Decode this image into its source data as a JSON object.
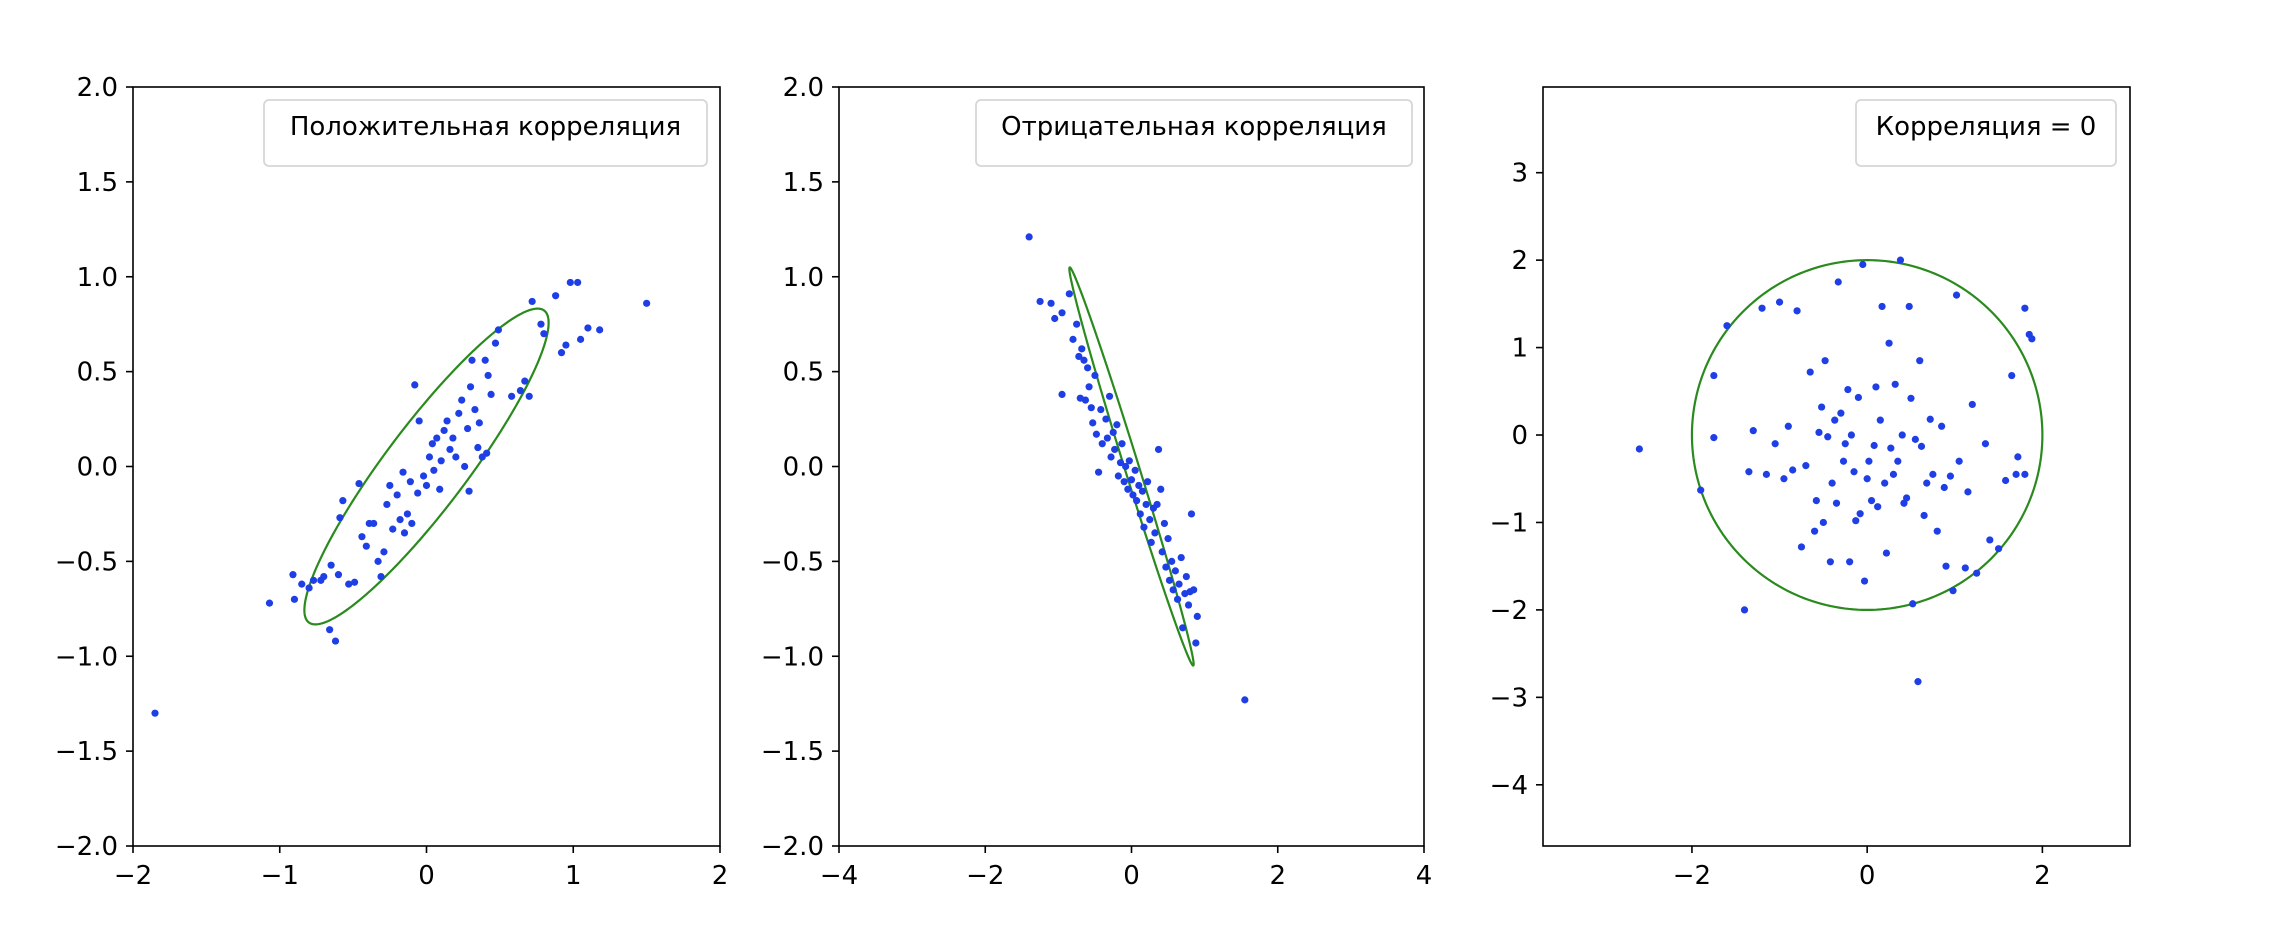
{
  "colors": {
    "points": "#1f3fe6",
    "ellipse": "#2a8a1e",
    "axes": "#000000",
    "legend_border": "#d6d6d6"
  },
  "chart_data": [
    {
      "type": "scatter",
      "title": "",
      "xlabel": "",
      "ylabel": "",
      "legend": {
        "entries": [
          "Положительная корреляция"
        ],
        "placement": "top-right"
      },
      "xlim": [
        -2,
        2
      ],
      "ylim": [
        -2,
        2
      ],
      "xticks": [
        -2,
        -1,
        0,
        1,
        2
      ],
      "xtick_labels": [
        "−2",
        "−1",
        "0",
        "1",
        "2"
      ],
      "yticks": [
        -2,
        -1.5,
        -1,
        -0.5,
        0,
        0.5,
        1,
        1.5,
        2
      ],
      "ytick_labels": [
        "−2.0",
        "−1.5",
        "−1.0",
        "−0.5",
        "0.0",
        "0.5",
        "1.0",
        "1.5",
        "2.0"
      ],
      "ellipse": {
        "center": [
          0,
          0
        ],
        "width": 2.3,
        "height": 0.5,
        "angle_deg": 45
      },
      "points": [
        [
          -1.85,
          -1.3
        ],
        [
          -1.07,
          -0.72
        ],
        [
          -0.91,
          -0.57
        ],
        [
          -0.9,
          -0.7
        ],
        [
          -0.85,
          -0.62
        ],
        [
          -0.8,
          -0.64
        ],
        [
          -0.77,
          -0.6
        ],
        [
          -0.72,
          -0.6
        ],
        [
          -0.7,
          -0.58
        ],
        [
          -0.66,
          -0.86
        ],
        [
          -0.62,
          -0.92
        ],
        [
          -0.65,
          -0.52
        ],
        [
          -0.6,
          -0.57
        ],
        [
          -0.59,
          -0.27
        ],
        [
          -0.57,
          -0.18
        ],
        [
          -0.53,
          -0.62
        ],
        [
          -0.49,
          -0.61
        ],
        [
          -0.46,
          -0.09
        ],
        [
          -0.44,
          -0.37
        ],
        [
          -0.41,
          -0.42
        ],
        [
          -0.39,
          -0.3
        ],
        [
          -0.36,
          -0.3
        ],
        [
          -0.33,
          -0.5
        ],
        [
          -0.31,
          -0.58
        ],
        [
          -0.29,
          -0.45
        ],
        [
          -0.27,
          -0.2
        ],
        [
          -0.25,
          -0.1
        ],
        [
          -0.23,
          -0.33
        ],
        [
          -0.2,
          -0.15
        ],
        [
          -0.18,
          -0.28
        ],
        [
          -0.16,
          -0.03
        ],
        [
          -0.15,
          -0.35
        ],
        [
          -0.13,
          -0.25
        ],
        [
          -0.11,
          -0.08
        ],
        [
          -0.1,
          -0.3
        ],
        [
          -0.08,
          0.43
        ],
        [
          -0.06,
          -0.14
        ],
        [
          -0.05,
          0.24
        ],
        [
          -0.02,
          -0.05
        ],
        [
          0.0,
          -0.1
        ],
        [
          0.02,
          0.05
        ],
        [
          0.04,
          0.12
        ],
        [
          0.05,
          -0.02
        ],
        [
          0.07,
          0.15
        ],
        [
          0.09,
          -0.12
        ],
        [
          0.1,
          0.03
        ],
        [
          0.12,
          0.19
        ],
        [
          0.14,
          0.24
        ],
        [
          0.16,
          0.09
        ],
        [
          0.18,
          0.15
        ],
        [
          0.2,
          0.05
        ],
        [
          0.22,
          0.28
        ],
        [
          0.24,
          0.35
        ],
        [
          0.26,
          0.0
        ],
        [
          0.28,
          0.2
        ],
        [
          0.29,
          -0.13
        ],
        [
          0.3,
          0.42
        ],
        [
          0.31,
          0.56
        ],
        [
          0.33,
          0.3
        ],
        [
          0.35,
          0.1
        ],
        [
          0.36,
          0.23
        ],
        [
          0.38,
          0.05
        ],
        [
          0.4,
          0.56
        ],
        [
          0.41,
          0.07
        ],
        [
          0.42,
          0.48
        ],
        [
          0.44,
          0.38
        ],
        [
          0.47,
          0.65
        ],
        [
          0.49,
          0.72
        ],
        [
          0.58,
          0.37
        ],
        [
          0.64,
          0.4
        ],
        [
          0.67,
          0.45
        ],
        [
          0.7,
          0.37
        ],
        [
          0.72,
          0.87
        ],
        [
          0.78,
          0.75
        ],
        [
          0.8,
          0.7
        ],
        [
          0.88,
          0.9
        ],
        [
          0.92,
          0.6
        ],
        [
          0.95,
          0.64
        ],
        [
          0.98,
          0.97
        ],
        [
          1.03,
          0.97
        ],
        [
          1.05,
          0.67
        ],
        [
          1.1,
          0.73
        ],
        [
          1.18,
          0.72
        ],
        [
          1.5,
          0.86
        ]
      ]
    },
    {
      "type": "scatter",
      "title": "",
      "xlabel": "",
      "ylabel": "",
      "legend": {
        "entries": [
          "Отрицательная корреляция"
        ],
        "placement": "top-right"
      },
      "xlim": [
        -4,
        4
      ],
      "ylim": [
        -2,
        2
      ],
      "xticks": [
        -4,
        -2,
        0,
        2,
        4
      ],
      "xtick_labels": [
        "−4",
        "−2",
        "0",
        "2",
        "4"
      ],
      "yticks": [
        -2,
        -1.5,
        -1,
        -0.5,
        0,
        0.5,
        1,
        1.5,
        2
      ],
      "ytick_labels": [
        "−2.0",
        "−1.5",
        "−1.0",
        "−0.5",
        "0.0",
        "0.5",
        "1.0",
        "1.5",
        "2.0"
      ],
      "ellipse": {
        "center": [
          0,
          0
        ],
        "rx": 0.85,
        "ry": 1.05,
        "correlation": "negative"
      },
      "points": [
        [
          -1.4,
          1.21
        ],
        [
          -1.25,
          0.87
        ],
        [
          -1.1,
          0.86
        ],
        [
          -1.05,
          0.78
        ],
        [
          -0.95,
          0.38
        ],
        [
          -0.95,
          0.81
        ],
        [
          -0.85,
          0.91
        ],
        [
          -0.8,
          0.67
        ],
        [
          -0.75,
          0.75
        ],
        [
          -0.72,
          0.58
        ],
        [
          -0.7,
          0.36
        ],
        [
          -0.68,
          0.62
        ],
        [
          -0.65,
          0.56
        ],
        [
          -0.63,
          0.35
        ],
        [
          -0.6,
          0.52
        ],
        [
          -0.58,
          0.42
        ],
        [
          -0.55,
          0.31
        ],
        [
          -0.53,
          0.23
        ],
        [
          -0.5,
          0.48
        ],
        [
          -0.48,
          0.17
        ],
        [
          -0.45,
          -0.03
        ],
        [
          -0.42,
          0.3
        ],
        [
          -0.4,
          0.12
        ],
        [
          -0.35,
          0.25
        ],
        [
          -0.33,
          0.15
        ],
        [
          -0.3,
          0.37
        ],
        [
          -0.28,
          0.05
        ],
        [
          -0.25,
          0.18
        ],
        [
          -0.23,
          0.09
        ],
        [
          -0.2,
          0.22
        ],
        [
          -0.18,
          -0.05
        ],
        [
          -0.15,
          0.02
        ],
        [
          -0.13,
          0.12
        ],
        [
          -0.1,
          -0.08
        ],
        [
          -0.08,
          0.0
        ],
        [
          -0.05,
          -0.12
        ],
        [
          -0.03,
          0.03
        ],
        [
          0.0,
          -0.07
        ],
        [
          0.02,
          -0.15
        ],
        [
          0.05,
          -0.02
        ],
        [
          0.07,
          -0.18
        ],
        [
          0.1,
          -0.1
        ],
        [
          0.12,
          -0.25
        ],
        [
          0.15,
          -0.13
        ],
        [
          0.17,
          -0.32
        ],
        [
          0.2,
          -0.2
        ],
        [
          0.22,
          -0.08
        ],
        [
          0.25,
          -0.28
        ],
        [
          0.27,
          -0.4
        ],
        [
          0.3,
          -0.22
        ],
        [
          0.32,
          -0.35
        ],
        [
          0.35,
          -0.2
        ],
        [
          0.37,
          0.09
        ],
        [
          0.4,
          -0.12
        ],
        [
          0.42,
          -0.45
        ],
        [
          0.45,
          -0.3
        ],
        [
          0.47,
          -0.53
        ],
        [
          0.5,
          -0.38
        ],
        [
          0.52,
          -0.6
        ],
        [
          0.55,
          -0.5
        ],
        [
          0.57,
          -0.65
        ],
        [
          0.6,
          -0.55
        ],
        [
          0.63,
          -0.7
        ],
        [
          0.65,
          -0.62
        ],
        [
          0.68,
          -0.48
        ],
        [
          0.7,
          -0.85
        ],
        [
          0.73,
          -0.67
        ],
        [
          0.75,
          -0.58
        ],
        [
          0.78,
          -0.73
        ],
        [
          0.8,
          -0.66
        ],
        [
          0.82,
          -0.25
        ],
        [
          0.85,
          -0.65
        ],
        [
          0.88,
          -0.93
        ],
        [
          0.9,
          -0.79
        ],
        [
          1.55,
          -1.23
        ]
      ]
    },
    {
      "type": "scatter",
      "title": "",
      "xlabel": "",
      "ylabel": "",
      "legend": {
        "entries": [
          "Корреляция = 0"
        ],
        "placement": "top-right"
      },
      "xlim": [
        -3.7,
        3.0
      ],
      "ylim": [
        -4.7,
        3.98
      ],
      "xticks": [
        -2,
        0,
        2
      ],
      "xtick_labels": [
        "−2",
        "0",
        "2"
      ],
      "yticks": [
        -4,
        -3,
        -2,
        -1,
        0,
        1,
        2,
        3
      ],
      "ytick_labels": [
        "−4",
        "−3",
        "−2",
        "−1",
        "0",
        "1",
        "2",
        "3"
      ],
      "ellipse": {
        "center": [
          0,
          0
        ],
        "rx": 2,
        "ry": 2
      },
      "points": [
        [
          -2.6,
          -0.16
        ],
        [
          -1.9,
          -0.63
        ],
        [
          -1.75,
          -0.03
        ],
        [
          -1.75,
          0.68
        ],
        [
          -1.6,
          1.25
        ],
        [
          -1.4,
          -2.0
        ],
        [
          -1.35,
          -0.42
        ],
        [
          -1.3,
          0.05
        ],
        [
          -1.2,
          1.45
        ],
        [
          -1.15,
          -0.45
        ],
        [
          -1.05,
          -0.1
        ],
        [
          -1.0,
          1.52
        ],
        [
          -0.95,
          -0.5
        ],
        [
          -0.9,
          0.1
        ],
        [
          -0.85,
          -0.4
        ],
        [
          -0.8,
          1.42
        ],
        [
          -0.75,
          -1.28
        ],
        [
          -0.7,
          -0.35
        ],
        [
          -0.65,
          0.72
        ],
        [
          -0.6,
          -1.1
        ],
        [
          -0.58,
          -0.75
        ],
        [
          -0.55,
          0.03
        ],
        [
          -0.52,
          0.32
        ],
        [
          -0.5,
          -1.0
        ],
        [
          -0.48,
          0.85
        ],
        [
          -0.45,
          -0.02
        ],
        [
          -0.42,
          -1.45
        ],
        [
          -0.4,
          -0.55
        ],
        [
          -0.37,
          0.17
        ],
        [
          -0.35,
          -0.78
        ],
        [
          -0.33,
          1.75
        ],
        [
          -0.3,
          0.25
        ],
        [
          -0.27,
          -0.3
        ],
        [
          -0.25,
          -0.1
        ],
        [
          -0.22,
          0.52
        ],
        [
          -0.2,
          -1.45
        ],
        [
          -0.18,
          0.0
        ],
        [
          -0.15,
          -0.42
        ],
        [
          -0.13,
          -0.98
        ],
        [
          -0.1,
          0.43
        ],
        [
          -0.08,
          -0.9
        ],
        [
          -0.05,
          1.95
        ],
        [
          -0.03,
          -1.67
        ],
        [
          0.0,
          -0.5
        ],
        [
          0.02,
          -0.3
        ],
        [
          0.05,
          -0.75
        ],
        [
          0.08,
          -0.12
        ],
        [
          0.1,
          0.55
        ],
        [
          0.12,
          -0.82
        ],
        [
          0.15,
          0.17
        ],
        [
          0.17,
          1.47
        ],
        [
          0.2,
          -0.55
        ],
        [
          0.22,
          -1.35
        ],
        [
          0.25,
          1.05
        ],
        [
          0.27,
          -0.15
        ],
        [
          0.3,
          -0.45
        ],
        [
          0.32,
          0.58
        ],
        [
          0.35,
          -0.3
        ],
        [
          0.38,
          2.0
        ],
        [
          0.4,
          0.0
        ],
        [
          0.42,
          -0.78
        ],
        [
          0.45,
          -0.72
        ],
        [
          0.48,
          1.47
        ],
        [
          0.5,
          0.42
        ],
        [
          0.52,
          -1.93
        ],
        [
          0.55,
          -0.05
        ],
        [
          0.58,
          -2.82
        ],
        [
          0.6,
          0.85
        ],
        [
          0.62,
          -0.13
        ],
        [
          0.65,
          -0.92
        ],
        [
          0.68,
          -0.55
        ],
        [
          0.72,
          0.18
        ],
        [
          0.75,
          -0.45
        ],
        [
          0.8,
          -1.1
        ],
        [
          0.85,
          0.1
        ],
        [
          0.88,
          -0.6
        ],
        [
          0.9,
          -1.5
        ],
        [
          0.95,
          -0.47
        ],
        [
          0.98,
          -1.78
        ],
        [
          1.02,
          1.6
        ],
        [
          1.05,
          -0.3
        ],
        [
          1.12,
          -1.52
        ],
        [
          1.15,
          -0.65
        ],
        [
          1.2,
          0.35
        ],
        [
          1.25,
          -1.58
        ],
        [
          1.35,
          -0.1
        ],
        [
          1.4,
          -1.2
        ],
        [
          1.5,
          -1.3
        ],
        [
          1.58,
          -0.52
        ],
        [
          1.65,
          0.68
        ],
        [
          1.7,
          -0.45
        ],
        [
          1.72,
          -0.25
        ],
        [
          1.8,
          -0.45
        ],
        [
          1.8,
          1.45
        ],
        [
          1.85,
          1.15
        ],
        [
          1.88,
          1.1
        ]
      ]
    }
  ]
}
